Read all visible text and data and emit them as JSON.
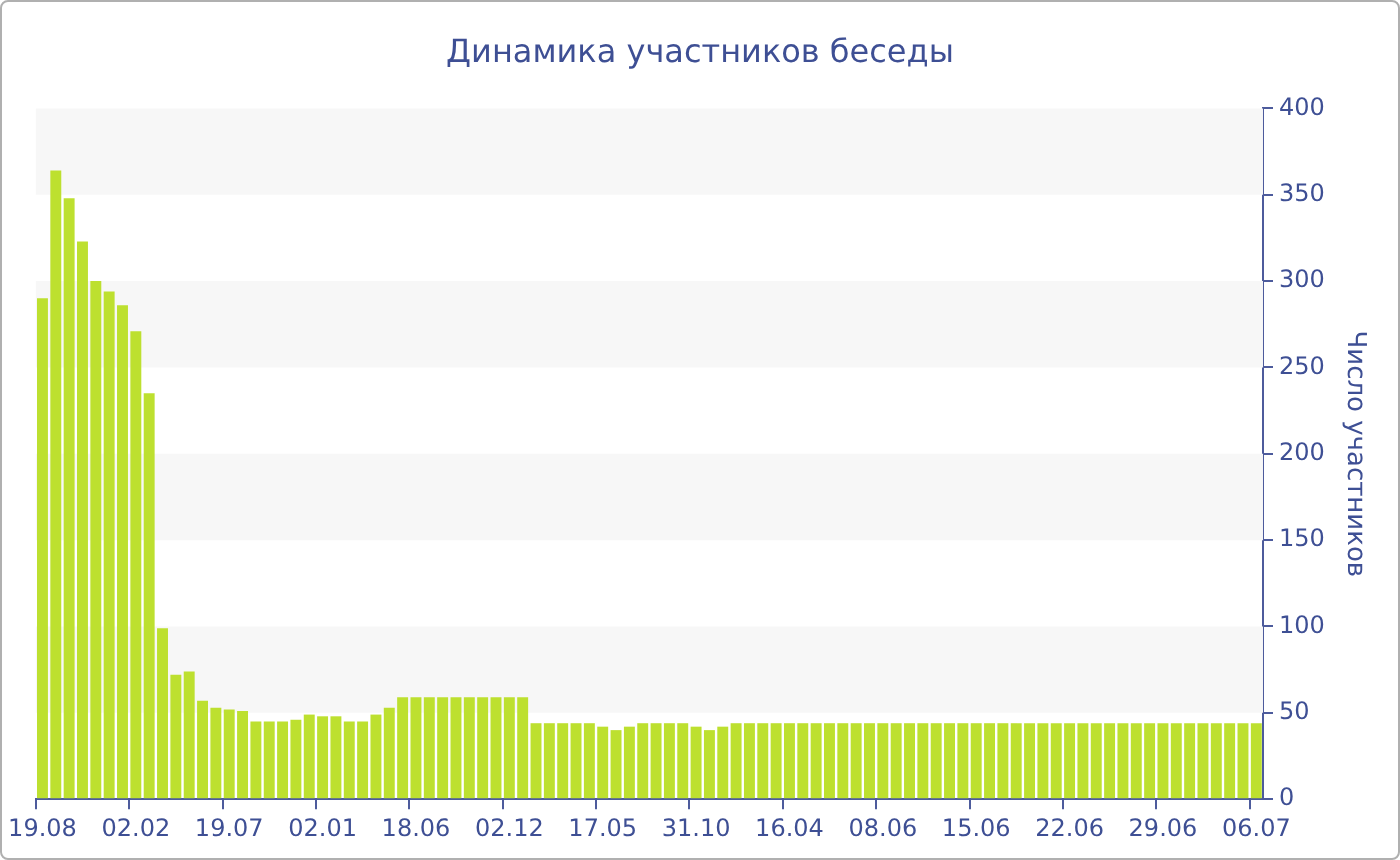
{
  "chart_data": {
    "type": "bar",
    "title": "Динамика участников беседы",
    "ylabel": "Число участников",
    "categories": [
      "19.08",
      null,
      null,
      null,
      null,
      null,
      null,
      "02.02",
      null,
      null,
      null,
      null,
      null,
      null,
      "19.07",
      null,
      null,
      null,
      null,
      null,
      null,
      "02.01",
      null,
      null,
      null,
      null,
      null,
      null,
      "18.06",
      null,
      null,
      null,
      null,
      null,
      null,
      "02.12",
      null,
      null,
      null,
      null,
      null,
      null,
      "17.05",
      null,
      null,
      null,
      null,
      null,
      null,
      "31.10",
      null,
      null,
      null,
      null,
      null,
      null,
      "16.04",
      null,
      null,
      null,
      null,
      null,
      null,
      "08.06",
      null,
      null,
      null,
      null,
      null,
      null,
      "15.06",
      null,
      null,
      null,
      null,
      null,
      null,
      "22.06",
      null,
      null,
      null,
      null,
      null,
      null,
      "29.06",
      null,
      null,
      null,
      null,
      null,
      null,
      "06.07"
    ],
    "values": [
      290,
      364,
      348,
      323,
      300,
      294,
      286,
      271,
      235,
      99,
      72,
      74,
      57,
      53,
      52,
      51,
      45,
      45,
      45,
      46,
      49,
      48,
      48,
      45,
      45,
      49,
      53,
      59,
      59,
      59,
      59,
      59,
      59,
      59,
      59,
      59,
      59,
      44,
      44,
      44,
      44,
      44,
      42,
      40,
      42,
      44,
      44,
      44,
      44,
      42,
      40,
      42,
      44,
      44,
      44,
      44,
      44,
      44,
      44,
      44,
      44,
      44,
      44,
      44,
      44,
      44,
      44,
      44,
      44,
      44,
      44,
      44,
      44,
      44,
      44,
      44,
      44,
      44,
      44,
      44,
      44,
      44,
      44,
      44,
      44,
      44,
      44,
      44,
      44,
      44,
      44,
      44
    ],
    "color": "#bde02f",
    "ylim": [
      0,
      400
    ],
    "yticks": [
      0,
      50,
      100,
      150,
      200,
      250,
      300,
      350,
      400
    ],
    "grid": false,
    "bands": [
      {
        "axis": "y",
        "from": 50,
        "to": 100,
        "color": "#f7f7f7"
      },
      {
        "axis": "y",
        "from": 150,
        "to": 200,
        "color": "#f7f7f7"
      },
      {
        "axis": "y",
        "from": 250,
        "to": 300,
        "color": "#f7f7f7"
      },
      {
        "axis": "y",
        "from": 350,
        "to": 400,
        "color": "#f7f7f7"
      }
    ]
  }
}
